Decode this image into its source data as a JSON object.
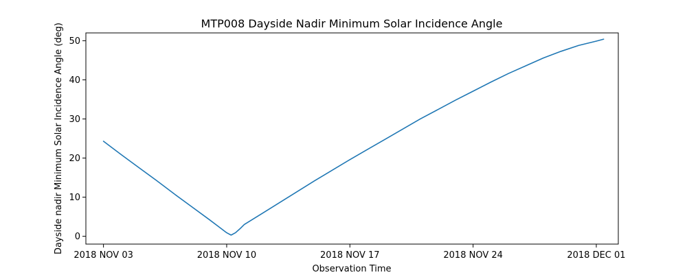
{
  "chart_data": {
    "type": "line",
    "title": "MTP008 Dayside Nadir Minimum Solar Incidence Angle",
    "xlabel": "Observation Time",
    "ylabel": "Dayside nadir Minimum Solar Incidence Angle (deg)",
    "xlim": [
      "2018-11-02T00:00",
      "2018-12-02T06:00"
    ],
    "ylim": [
      -2,
      52
    ],
    "x_ticks": [
      {
        "label": "2018 NOV 03",
        "value": "2018-11-03"
      },
      {
        "label": "2018 NOV 10",
        "value": "2018-11-10"
      },
      {
        "label": "2018 NOV 17",
        "value": "2018-11-17"
      },
      {
        "label": "2018 NOV 24",
        "value": "2018-11-24"
      },
      {
        "label": "2018 DEC 01",
        "value": "2018-12-01"
      }
    ],
    "y_ticks": [
      0,
      10,
      20,
      30,
      40,
      50
    ],
    "grid": false,
    "series": [
      {
        "color": "#1f77b4",
        "x": [
          "2018-11-03T00:00",
          "2018-11-04T00:00",
          "2018-11-05T00:00",
          "2018-11-06T00:00",
          "2018-11-07T00:00",
          "2018-11-08T00:00",
          "2018-11-09T00:00",
          "2018-11-09T12:00",
          "2018-11-10T00:00",
          "2018-11-10T06:00",
          "2018-11-10T12:00",
          "2018-11-10T18:00",
          "2018-11-11T00:00",
          "2018-11-12T00:00",
          "2018-11-13T00:00",
          "2018-11-14T00:00",
          "2018-11-15T00:00",
          "2018-11-16T00:00",
          "2018-11-17T00:00",
          "2018-11-18T00:00",
          "2018-11-19T00:00",
          "2018-11-20T00:00",
          "2018-11-21T00:00",
          "2018-11-22T00:00",
          "2018-11-23T00:00",
          "2018-11-24T00:00",
          "2018-11-25T00:00",
          "2018-11-26T00:00",
          "2018-11-27T00:00",
          "2018-11-28T00:00",
          "2018-11-29T00:00",
          "2018-11-30T00:00",
          "2018-12-01T00:00",
          "2018-12-01T10:00"
        ],
        "y": [
          24.3,
          20.9,
          17.6,
          14.3,
          10.9,
          7.6,
          4.3,
          2.6,
          0.9,
          0.3,
          0.9,
          1.9,
          3.0,
          5.8,
          8.6,
          11.4,
          14.2,
          16.9,
          19.6,
          22.2,
          24.8,
          27.4,
          30.0,
          32.4,
          34.8,
          37.1,
          39.4,
          41.6,
          43.6,
          45.6,
          47.3,
          48.8,
          49.9,
          50.4
        ]
      }
    ]
  }
}
